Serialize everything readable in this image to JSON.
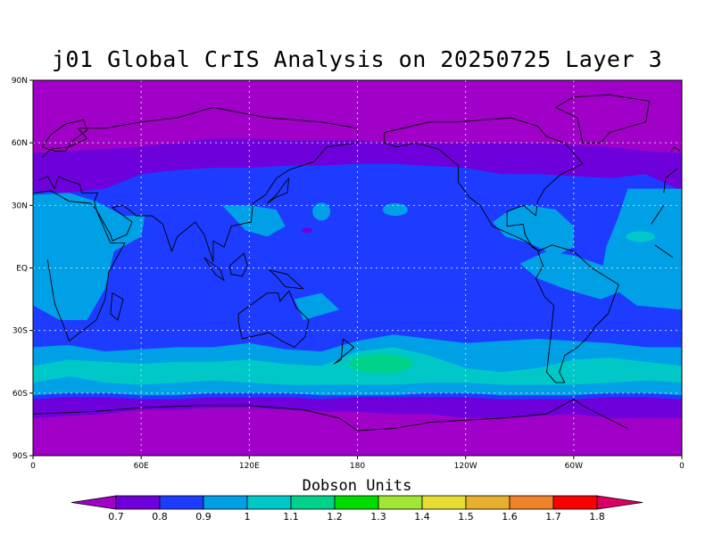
{
  "title": "j01 Global CrIS Analysis on 20250725 Layer 3",
  "units_label": "Dobson Units",
  "map": {
    "projection": "cylindrical-equidistant",
    "lon_range": [
      0,
      360
    ],
    "lat_range": [
      -90,
      90
    ],
    "grid": "dotted",
    "lat_ticks": [
      {
        "lat": 90,
        "label": "90N"
      },
      {
        "lat": 60,
        "label": "60N"
      },
      {
        "lat": 30,
        "label": "30N"
      },
      {
        "lat": 0,
        "label": "EQ"
      },
      {
        "lat": -30,
        "label": "30S"
      },
      {
        "lat": -60,
        "label": "60S"
      },
      {
        "lat": -90,
        "label": "90S"
      }
    ],
    "lon_ticks": [
      {
        "lon": 0,
        "label": "0"
      },
      {
        "lon": 60,
        "label": "60E"
      },
      {
        "lon": 120,
        "label": "120E"
      },
      {
        "lon": 180,
        "label": "180"
      },
      {
        "lon": 240,
        "label": "120W"
      },
      {
        "lon": 300,
        "label": "60W"
      },
      {
        "lon": 360,
        "label": "0"
      }
    ]
  },
  "colorbar": {
    "colors": [
      "#a000c8",
      "#6e00dc",
      "#1e3cff",
      "#00a0e6",
      "#00c8c8",
      "#00d28c",
      "#00dc00",
      "#a0e632",
      "#e6dc32",
      "#e6af2d",
      "#f08228",
      "#fa0000",
      "#dc0064"
    ],
    "labels": [
      "0.7",
      "0.8",
      "0.9",
      "1",
      "1.1",
      "1.2",
      "1.3",
      "1.4",
      "1.5",
      "1.6",
      "1.7",
      "1.8"
    ]
  },
  "chart_data": {
    "type": "heatmap",
    "title": "j01 Global CrIS Analysis on 20250725 Layer 3",
    "colorbar_label": "Dobson Units",
    "levels": [
      0.7,
      0.8,
      0.9,
      1.0,
      1.1,
      1.2,
      1.3,
      1.4,
      1.5,
      1.6,
      1.7,
      1.8
    ],
    "zonal_bands": [
      {
        "lat": [
          60,
          90
        ],
        "value": 0.75
      },
      {
        "lat": [
          45,
          60
        ],
        "value": 0.85
      },
      {
        "lat": [
          20,
          45
        ],
        "value": 0.95
      },
      {
        "lat": [
          -20,
          20
        ],
        "value": 1.0
      },
      {
        "lat": [
          -35,
          -20
        ],
        "value": 0.95
      },
      {
        "lat": [
          -60,
          -35
        ],
        "value": 1.1
      },
      {
        "lat": [
          -70,
          -60
        ],
        "value": 0.85
      },
      {
        "lat": [
          -90,
          -70
        ],
        "value": 0.75
      }
    ]
  }
}
